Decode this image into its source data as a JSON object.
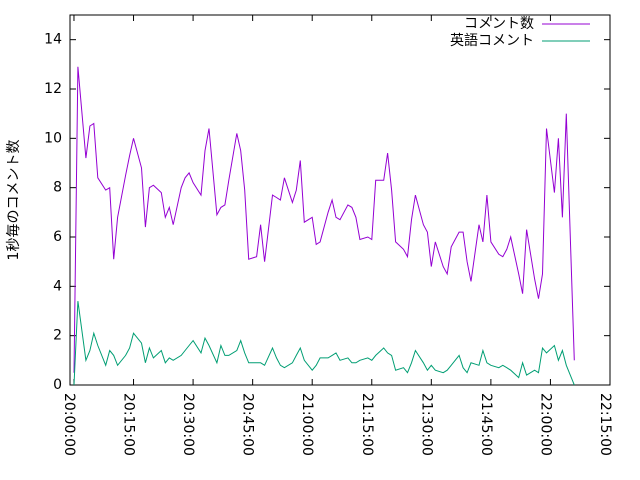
{
  "chart_data": {
    "type": "line",
    "y_label": "1秒毎のコメント数",
    "x": [
      0,
      1,
      3,
      4,
      5,
      6,
      8,
      9,
      10,
      11,
      13,
      14,
      15,
      17,
      18,
      19,
      20,
      22,
      23,
      24,
      25,
      27,
      28,
      29,
      30,
      32,
      33,
      34,
      36,
      37,
      38,
      39,
      41,
      42,
      43,
      44,
      46,
      47,
      48,
      50,
      51,
      52,
      53,
      55,
      56,
      57,
      58,
      60,
      61,
      62,
      64,
      65,
      66,
      67,
      69,
      70,
      71,
      72,
      74,
      75,
      76,
      78,
      79,
      80,
      81,
      83,
      84,
      85,
      86,
      88,
      89,
      90,
      91,
      93,
      94,
      95,
      97,
      98,
      99,
      100,
      102,
      103,
      104,
      105,
      107,
      108,
      109,
      110,
      112,
      113,
      114,
      116,
      117,
      118,
      119,
      121,
      122,
      123,
      124,
      126
    ],
    "series": [
      {
        "name": "コメント数",
        "color": "#9400d3",
        "values": [
          0.5,
          12.9,
          9.2,
          10.5,
          10.6,
          8.4,
          7.9,
          8.0,
          5.1,
          6.8,
          8.5,
          9.3,
          10.0,
          8.8,
          6.4,
          8.0,
          8.1,
          7.8,
          6.8,
          7.2,
          6.5,
          8.0,
          8.4,
          8.6,
          8.2,
          7.7,
          9.5,
          10.4,
          6.9,
          7.2,
          7.3,
          8.3,
          10.2,
          9.5,
          7.9,
          5.1,
          5.2,
          6.5,
          5.0,
          7.7,
          7.6,
          7.5,
          8.4,
          7.4,
          7.9,
          9.1,
          6.6,
          6.8,
          5.7,
          5.8,
          7.0,
          7.5,
          6.8,
          6.7,
          7.3,
          7.2,
          6.8,
          5.9,
          6.0,
          5.9,
          8.3,
          8.3,
          9.4,
          7.9,
          5.8,
          5.5,
          5.2,
          6.7,
          7.7,
          6.5,
          6.2,
          4.8,
          5.8,
          4.8,
          4.5,
          5.6,
          6.2,
          6.2,
          5.0,
          4.2,
          6.5,
          5.8,
          7.7,
          5.8,
          5.3,
          5.2,
          5.5,
          6.0,
          4.5,
          3.7,
          6.3,
          4.3,
          3.5,
          4.5,
          10.4,
          7.8,
          10.0,
          6.8,
          11.0,
          1.0
        ]
      },
      {
        "name": "英語コメント",
        "color": "#009e73",
        "values": [
          0,
          3.4,
          1.0,
          1.4,
          2.1,
          1.6,
          0.8,
          1.4,
          1.2,
          0.8,
          1.2,
          1.5,
          2.1,
          1.7,
          0.9,
          1.5,
          1.1,
          1.4,
          0.9,
          1.1,
          1.0,
          1.2,
          1.4,
          1.6,
          1.8,
          1.3,
          1.9,
          1.6,
          0.9,
          1.6,
          1.2,
          1.2,
          1.4,
          1.8,
          1.3,
          0.9,
          0.9,
          0.9,
          0.8,
          1.5,
          1.1,
          0.8,
          0.7,
          0.9,
          1.2,
          1.5,
          1.0,
          0.6,
          0.8,
          1.1,
          1.1,
          1.2,
          1.3,
          1.0,
          1.1,
          0.9,
          0.9,
          1.0,
          1.1,
          1.0,
          1.2,
          1.5,
          1.3,
          1.2,
          0.6,
          0.7,
          0.5,
          0.9,
          1.4,
          0.9,
          0.6,
          0.8,
          0.6,
          0.5,
          0.6,
          0.8,
          1.2,
          0.7,
          0.5,
          0.9,
          0.8,
          1.4,
          0.9,
          0.8,
          0.7,
          0.8,
          0.7,
          0.6,
          0.3,
          0.9,
          0.4,
          0.6,
          0.5,
          1.5,
          1.3,
          1.6,
          1.0,
          1.4,
          0.8,
          0
        ]
      }
    ],
    "xlim": [
      -1,
      135
    ],
    "xticks": [
      {
        "value": 0,
        "label": "20:00:00"
      },
      {
        "value": 15,
        "label": "20:15:00"
      },
      {
        "value": 30,
        "label": "20:30:00"
      },
      {
        "value": 45,
        "label": "20:45:00"
      },
      {
        "value": 60,
        "label": "21:00:00"
      },
      {
        "value": 75,
        "label": "21:15:00"
      },
      {
        "value": 90,
        "label": "21:30:00"
      },
      {
        "value": 105,
        "label": "21:45:00"
      },
      {
        "value": 120,
        "label": "22:00:00"
      },
      {
        "value": 135,
        "label": "22:15:00"
      }
    ],
    "ylim": [
      0,
      15
    ],
    "yticks": [
      0,
      2,
      4,
      6,
      8,
      10,
      12,
      14
    ],
    "legend": "top-right"
  }
}
